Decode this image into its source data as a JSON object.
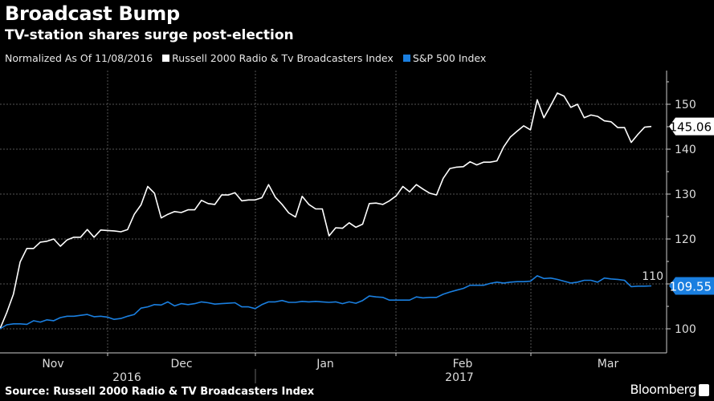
{
  "header": {
    "title": "Broadcast Bump",
    "subtitle": "TV-station shares surge post-election"
  },
  "legend": {
    "note": "Normalized As Of 11/08/2016",
    "items": [
      {
        "label": "Russell 2000 Radio & Tv Broadcasters Index",
        "color": "#ffffff"
      },
      {
        "label": "S&P 500 Index",
        "color": "#1a7fe0"
      }
    ]
  },
  "footer": {
    "source": "Source: Russell 2000 Radio & TV Broadcasters Index",
    "brand": "Bloomberg"
  },
  "chart_data": {
    "type": "line",
    "title": "Broadcast Bump",
    "subtitle": "TV-station shares surge post-election",
    "x_range": [
      "11/08/2016",
      "2017-03 (mid)"
    ],
    "x_month_labels": [
      "Nov",
      "Dec",
      "Jan",
      "Feb",
      "Mar"
    ],
    "x_year_labels": [
      "2016",
      "2017"
    ],
    "y_ticks": [
      100,
      110,
      120,
      130,
      140,
      150
    ],
    "ylim": [
      98,
      156
    ],
    "grid": true,
    "y_axis_side": "right",
    "legend_placement": "top",
    "series": [
      {
        "name": "Russell 2000 Radio & Tv Broadcasters Index",
        "color": "#ffffff",
        "last_value_label": "145.06",
        "values": [
          100.0,
          103.6,
          107.7,
          114.9,
          117.9,
          117.9,
          119.3,
          119.5,
          120.0,
          118.4,
          119.8,
          120.4,
          120.4,
          122.1,
          120.4,
          122.0,
          121.9,
          121.8,
          121.6,
          122.1,
          125.5,
          127.6,
          131.7,
          130.2,
          124.7,
          125.5,
          126.1,
          125.9,
          126.5,
          126.5,
          128.6,
          127.9,
          127.7,
          129.8,
          129.8,
          130.3,
          128.5,
          128.7,
          128.7,
          129.2,
          132.1,
          129.3,
          127.7,
          125.8,
          124.9,
          129.5,
          127.7,
          126.7,
          126.7,
          120.7,
          122.5,
          122.4,
          123.6,
          122.6,
          123.3,
          127.9,
          128.0,
          127.7,
          128.5,
          129.6,
          131.7,
          130.5,
          132.1,
          131.1,
          130.2,
          129.8,
          133.5,
          135.7,
          136.0,
          136.1,
          137.2,
          136.5,
          137.1,
          137.1,
          137.4,
          140.5,
          142.7,
          144.0,
          145.2,
          144.3,
          151.0,
          147.0,
          149.7,
          152.5,
          151.8,
          149.3,
          150.0,
          147.0,
          147.6,
          147.3,
          146.3,
          146.1,
          144.8,
          144.8,
          141.5,
          143.3,
          144.9,
          145.06
        ]
      },
      {
        "name": "S&P 500 Index",
        "color": "#1a7fe0",
        "last_value_label": "109.55",
        "values": [
          100.0,
          100.9,
          101.1,
          101.1,
          101.0,
          101.8,
          101.5,
          102.0,
          101.8,
          102.5,
          102.8,
          102.8,
          103.0,
          103.2,
          102.7,
          102.8,
          102.6,
          102.1,
          102.3,
          102.8,
          103.2,
          104.6,
          104.9,
          105.4,
          105.3,
          106.0,
          105.1,
          105.6,
          105.4,
          105.6,
          106.0,
          105.8,
          105.5,
          105.6,
          105.7,
          105.8,
          104.9,
          104.9,
          104.5,
          105.4,
          106.0,
          106.0,
          106.3,
          105.9,
          105.9,
          106.1,
          106.0,
          106.1,
          106.0,
          105.9,
          106.0,
          105.6,
          106.0,
          105.7,
          106.3,
          107.3,
          107.1,
          107.0,
          106.4,
          106.4,
          106.4,
          106.4,
          107.1,
          106.9,
          107.0,
          107.0,
          107.7,
          108.2,
          108.6,
          109.0,
          109.7,
          109.7,
          109.7,
          110.1,
          110.4,
          110.2,
          110.4,
          110.5,
          110.5,
          110.6,
          111.8,
          111.2,
          111.3,
          111.0,
          110.6,
          110.2,
          110.4,
          110.8,
          110.8,
          110.4,
          111.3,
          111.1,
          111.0,
          110.8,
          109.4,
          109.5,
          109.5,
          109.55
        ]
      }
    ]
  }
}
